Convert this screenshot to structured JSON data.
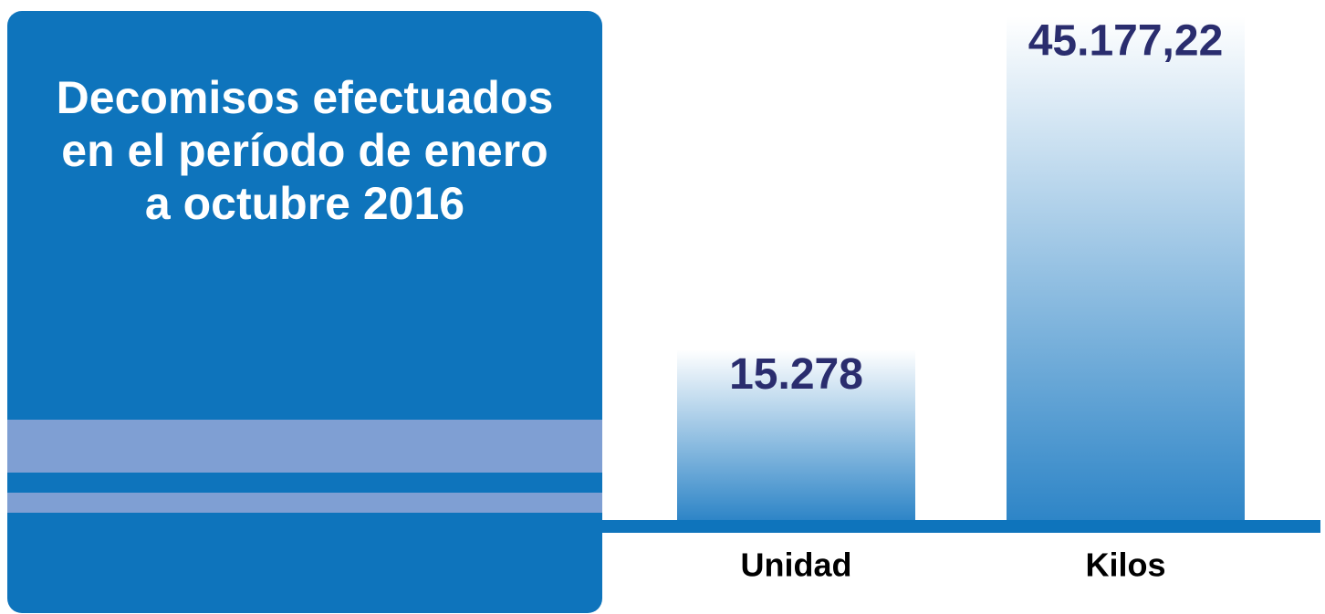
{
  "chart_data": {
    "type": "bar",
    "title": "Decomisos efectuados en el período de enero a octubre 2016",
    "categories": [
      "Unidad",
      "Kilos"
    ],
    "values": [
      15278,
      45177.22
    ],
    "value_labels": [
      "15.278",
      "45.177,22"
    ],
    "color": "#2e85c7"
  }
}
